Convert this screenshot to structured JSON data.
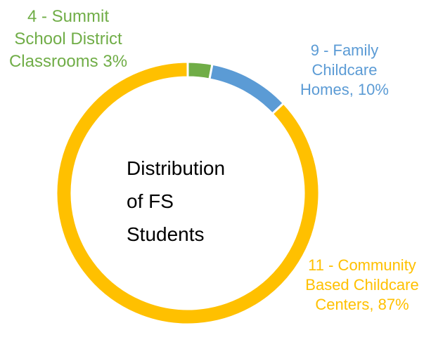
{
  "chart_data": {
    "type": "donut",
    "title": "Distribution of FS Students",
    "categories": [
      "4 - Summit School District Classrooms",
      "9 - Family Childcare Homes,",
      "11 - Community Based Childcare Centers,"
    ],
    "values": [
      3,
      10,
      87
    ],
    "value_labels": [
      "3%",
      "10%",
      "87%"
    ],
    "colors": [
      "#70AD47",
      "#5B9BD5",
      "#FFC000"
    ]
  }
}
